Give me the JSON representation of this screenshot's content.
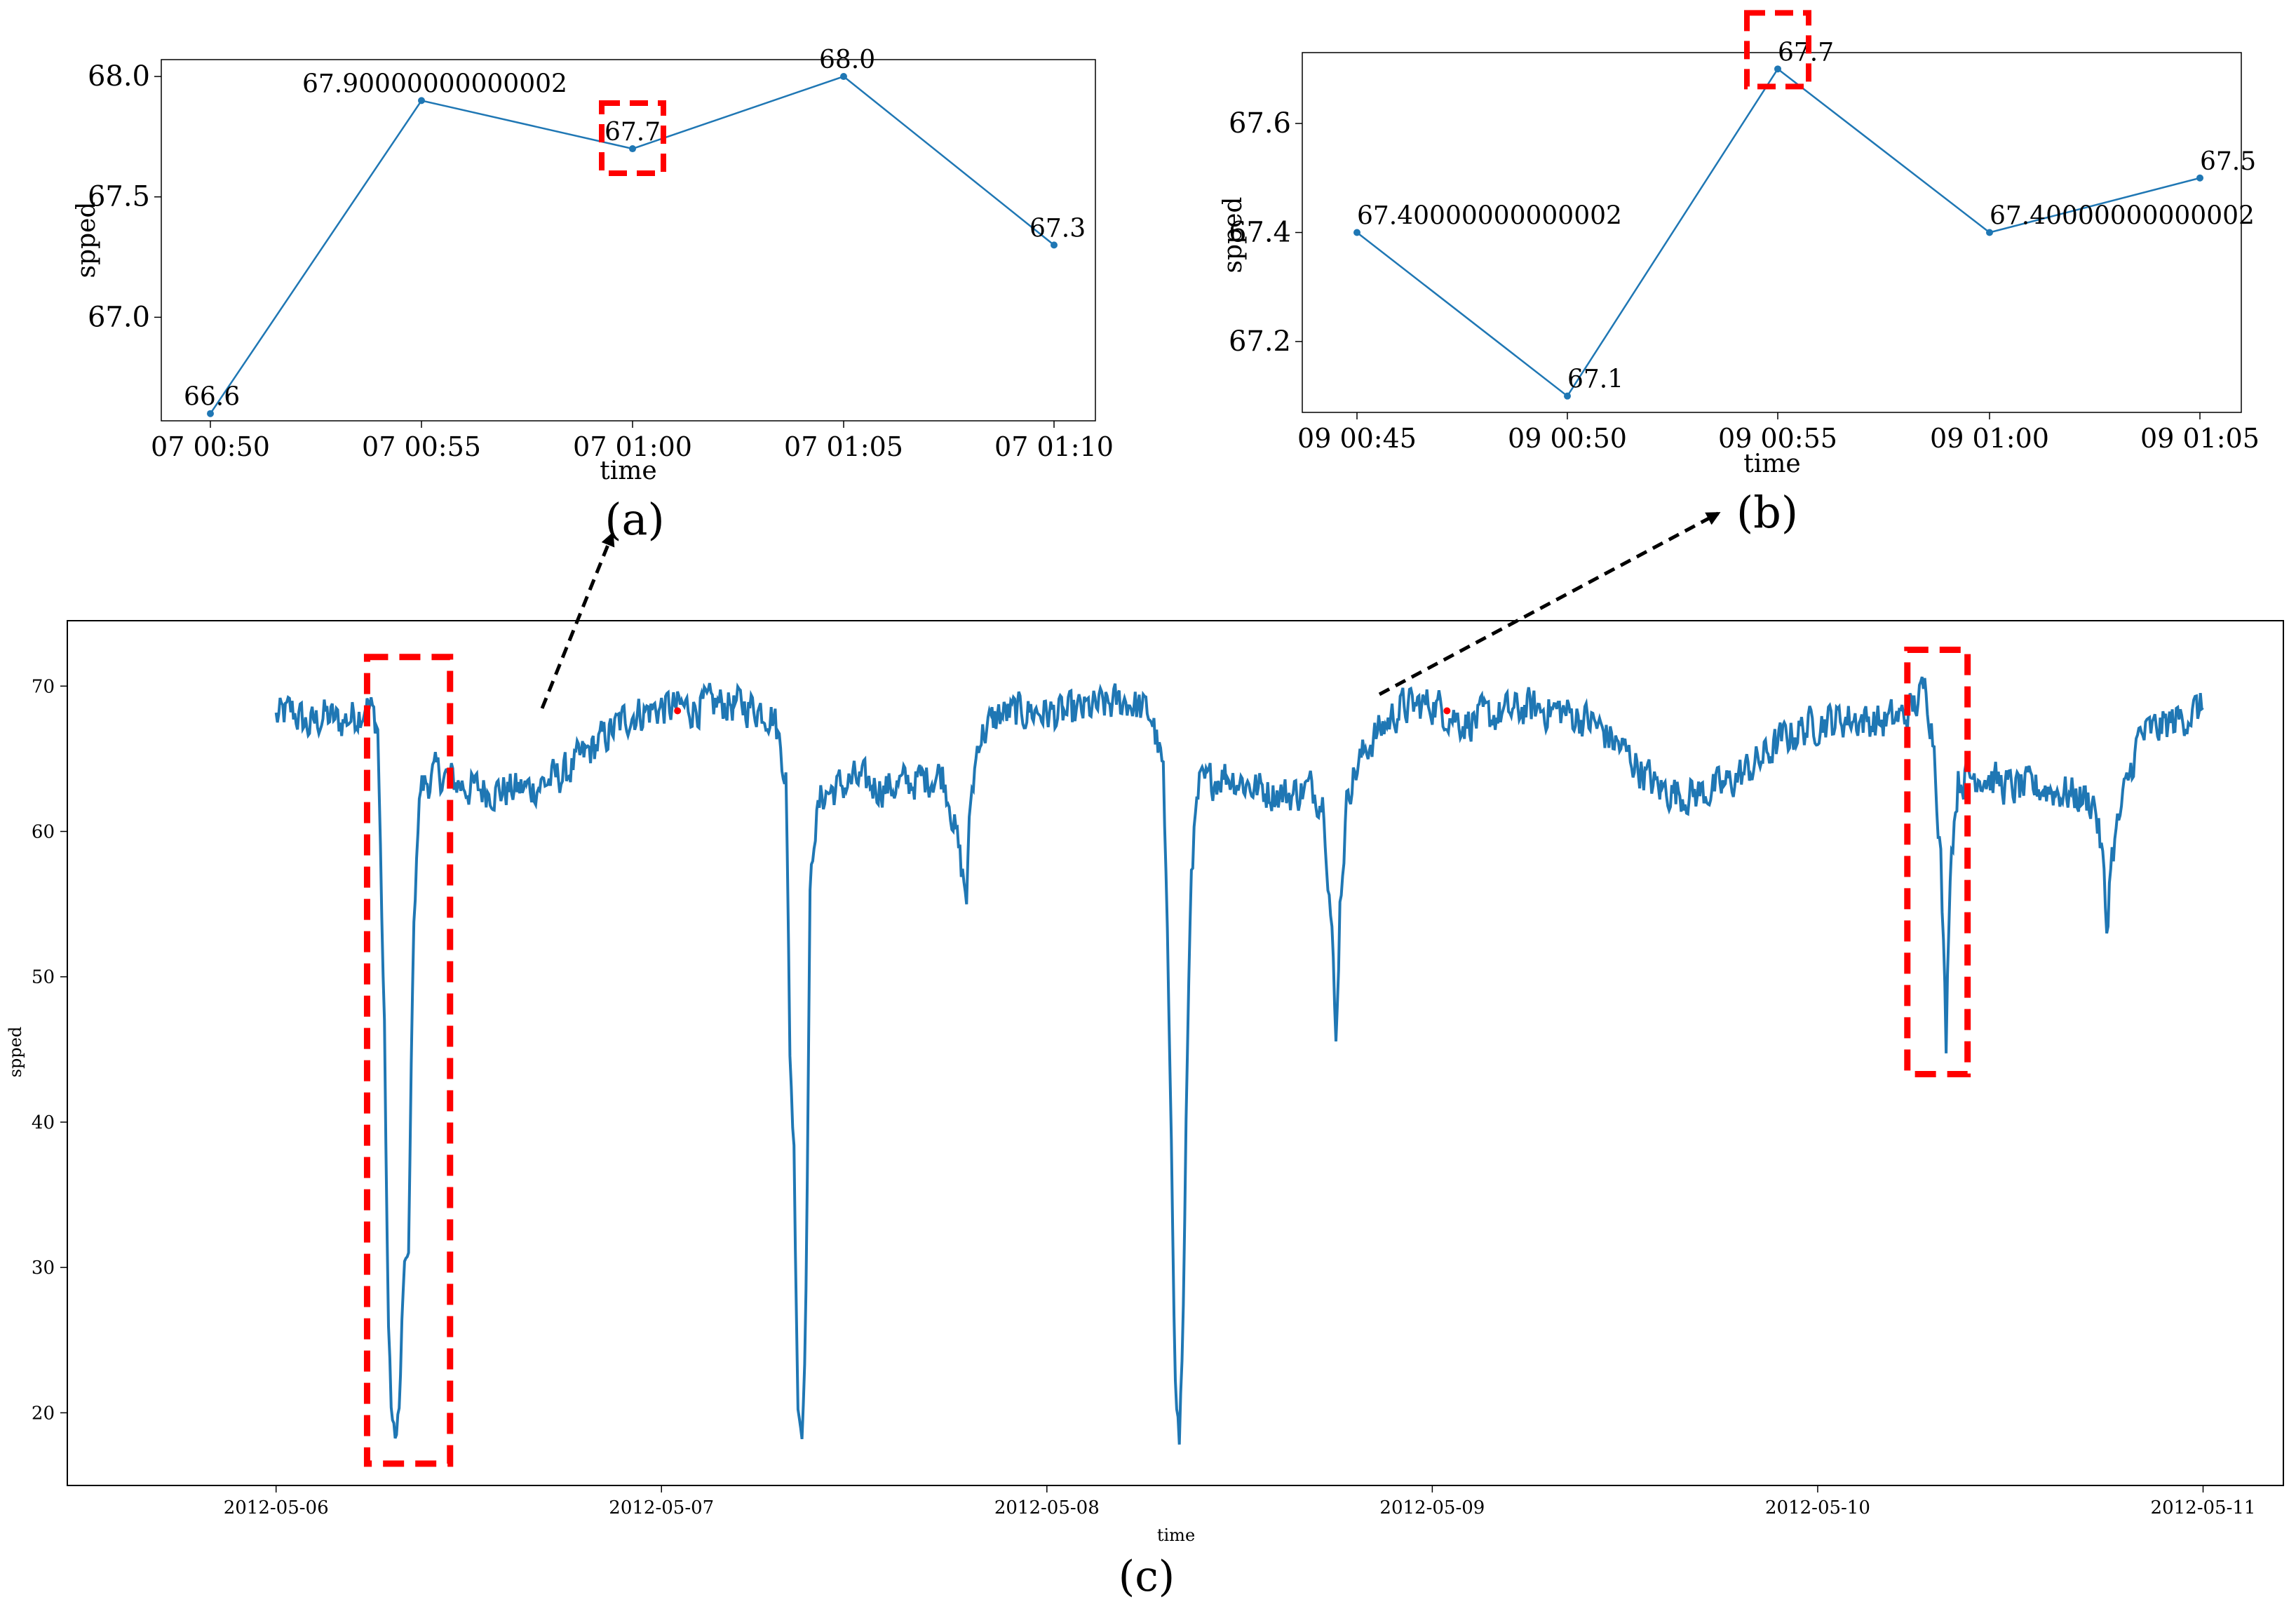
{
  "chart_data": [
    {
      "id": "a",
      "type": "line",
      "panel_label": "(a)",
      "xlabel": "time",
      "ylabel": "spped",
      "x_ticks": [
        "07 00:50",
        "07 00:55",
        "07 01:00",
        "07 01:05",
        "07 01:10"
      ],
      "x": [
        "07 00:50",
        "07 00:55",
        "07 01:00",
        "07 01:05",
        "07 01:10"
      ],
      "series": [
        {
          "values": [
            66.6,
            67.9,
            67.7,
            68.0,
            67.3
          ]
        }
      ],
      "data_labels": [
        "66.6",
        "67.90000000000002",
        "67.7",
        "68.0",
        "67.3"
      ],
      "y_ticks": [
        "67.0",
        "67.5",
        "68.0"
      ],
      "ylim": [
        66.57,
        68.07
      ],
      "highlight_index": 2
    },
    {
      "id": "b",
      "type": "line",
      "panel_label": "(b)",
      "xlabel": "time",
      "ylabel": "spped",
      "x_ticks": [
        "09 00:45",
        "09 00:50",
        "09 00:55",
        "09 01:00",
        "09 01:05"
      ],
      "x": [
        "09 00:45",
        "09 00:50",
        "09 00:55",
        "09 01:00",
        "09 01:05"
      ],
      "series": [
        {
          "values": [
            67.4,
            67.1,
            67.7,
            67.4,
            67.5
          ]
        }
      ],
      "data_labels": [
        "67.40000000000002",
        "67.1",
        "67.7",
        "67.40000000000002",
        "67.5"
      ],
      "y_ticks": [
        "67.2",
        "67.4",
        "67.6"
      ],
      "ylim": [
        67.07,
        67.73
      ],
      "highlight_index": 2
    },
    {
      "id": "c",
      "type": "line",
      "panel_label": "(c)",
      "xlabel": "time",
      "ylabel": "spped",
      "x_ticks": [
        "2012-05-06",
        "2012-05-07",
        "2012-05-08",
        "2012-05-09",
        "2012-05-10",
        "2012-05-11"
      ],
      "y_ticks": [
        "20",
        "30",
        "40",
        "50",
        "60",
        "70"
      ],
      "ylim": [
        15,
        74.5
      ],
      "xlim": [
        "2012-05-05 11:00",
        "2012-05-11 05:00"
      ],
      "series_color": "#1f77b4",
      "series": [
        {
          "anchors": [
            [
              "2012-05-06 00:00",
              67.8
            ],
            [
              "2012-05-06 01:00",
              68.3
            ],
            [
              "2012-05-06 02:00",
              67.2
            ],
            [
              "2012-05-06 03:00",
              68.0
            ],
            [
              "2012-05-06 04:00",
              67.5
            ],
            [
              "2012-05-06 05:00",
              68.1
            ],
            [
              "2012-05-06 05:45",
              68.8
            ],
            [
              "2012-05-06 06:20",
              67.2
            ],
            [
              "2012-05-06 06:45",
              46.0
            ],
            [
              "2012-05-06 07:00",
              25.0
            ],
            [
              "2012-05-06 07:15",
              19.5
            ],
            [
              "2012-05-06 07:30",
              17.8
            ],
            [
              "2012-05-06 07:45",
              22.0
            ],
            [
              "2012-05-06 08:00",
              31.0
            ],
            [
              "2012-05-06 08:15",
              30.0
            ],
            [
              "2012-05-06 08:30",
              50.0
            ],
            [
              "2012-05-06 08:45",
              59.0
            ],
            [
              "2012-05-06 09:00",
              63.0
            ],
            [
              "2012-05-06 10:00",
              64.0
            ],
            [
              "2012-05-06 12:00",
              63.0
            ],
            [
              "2012-05-06 14:00",
              62.8
            ],
            [
              "2012-05-06 16:00",
              63.0
            ],
            [
              "2012-05-06 18:00",
              64.0
            ],
            [
              "2012-05-06 20:00",
              66.0
            ],
            [
              "2012-05-06 22:00",
              68.0
            ],
            [
              "2012-05-07 00:00",
              68.5
            ],
            [
              "2012-05-07 02:00",
              68.5
            ],
            [
              "2012-05-07 04:00",
              68.8
            ],
            [
              "2012-05-07 06:00",
              68.5
            ],
            [
              "2012-05-07 07:00",
              68.0
            ],
            [
              "2012-05-07 07:45",
              64.0
            ],
            [
              "2012-05-07 08:00",
              45.0
            ],
            [
              "2012-05-07 08:15",
              38.0
            ],
            [
              "2012-05-07 08:30",
              21.0
            ],
            [
              "2012-05-07 08:45",
              18.5
            ],
            [
              "2012-05-07 09:00",
              28.0
            ],
            [
              "2012-05-07 09:15",
              55.0
            ],
            [
              "2012-05-07 09:30",
              60.0
            ],
            [
              "2012-05-07 10:00",
              62.5
            ],
            [
              "2012-05-07 12:00",
              63.5
            ],
            [
              "2012-05-07 14:00",
              63.0
            ],
            [
              "2012-05-07 16:00",
              63.5
            ],
            [
              "2012-05-07 17:30",
              64.0
            ],
            [
              "2012-05-07 18:00",
              62.0
            ],
            [
              "2012-05-07 18:45",
              57.0
            ],
            [
              "2012-05-07 19:00",
              55.5
            ],
            [
              "2012-05-07 19:15",
              62.0
            ],
            [
              "2012-05-07 19:45",
              66.5
            ],
            [
              "2012-05-07 21:00",
              68.0
            ],
            [
              "2012-05-07 23:00",
              68.3
            ],
            [
              "2012-05-08 01:00",
              68.0
            ],
            [
              "2012-05-08 03:00",
              68.5
            ],
            [
              "2012-05-08 05:00",
              69.0
            ],
            [
              "2012-05-08 06:30",
              68.0
            ],
            [
              "2012-05-08 07:15",
              64.0
            ],
            [
              "2012-05-08 07:45",
              40.0
            ],
            [
              "2012-05-08 08:00",
              22.0
            ],
            [
              "2012-05-08 08:15",
              18.0
            ],
            [
              "2012-05-08 08:30",
              27.0
            ],
            [
              "2012-05-08 08:45",
              45.0
            ],
            [
              "2012-05-08 09:00",
              58.0
            ],
            [
              "2012-05-08 09:30",
              63.0
            ],
            [
              "2012-05-08 11:00",
              64.0
            ],
            [
              "2012-05-08 13:00",
              63.0
            ],
            [
              "2012-05-08 15:00",
              62.5
            ],
            [
              "2012-05-08 16:30",
              63.0
            ],
            [
              "2012-05-08 17:15",
              62.0
            ],
            [
              "2012-05-08 17:45",
              53.0
            ],
            [
              "2012-05-08 18:00",
              45.0
            ],
            [
              "2012-05-08 18:15",
              55.0
            ],
            [
              "2012-05-08 18:45",
              63.0
            ],
            [
              "2012-05-08 20:00",
              66.0
            ],
            [
              "2012-05-08 22:00",
              68.5
            ],
            [
              "2012-05-09 00:00",
              68.8
            ],
            [
              "2012-05-09 02:00",
              67.5
            ],
            [
              "2012-05-09 04:00",
              68.0
            ],
            [
              "2012-05-09 06:00",
              68.5
            ],
            [
              "2012-05-09 08:00",
              68.3
            ],
            [
              "2012-05-09 10:00",
              67.5
            ],
            [
              "2012-05-09 12:00",
              65.5
            ],
            [
              "2012-05-09 14:00",
              63.0
            ],
            [
              "2012-05-09 16:00",
              62.5
            ],
            [
              "2012-05-09 18:00",
              63.0
            ],
            [
              "2012-05-09 20:00",
              64.5
            ],
            [
              "2012-05-09 22:00",
              66.5
            ],
            [
              "2012-05-10 00:00",
              67.5
            ],
            [
              "2012-05-10 02:00",
              67.8
            ],
            [
              "2012-05-10 04:00",
              67.5
            ],
            [
              "2012-05-10 05:30",
              68.0
            ],
            [
              "2012-05-10 06:15",
              69.0
            ],
            [
              "2012-05-10 06:45",
              70.0
            ],
            [
              "2012-05-10 07:15",
              66.0
            ],
            [
              "2012-05-10 07:40",
              58.0
            ],
            [
              "2012-05-10 08:00",
              45.5
            ],
            [
              "2012-05-10 08:15",
              58.0
            ],
            [
              "2012-05-10 08:45",
              63.5
            ],
            [
              "2012-05-10 10:00",
              64.0
            ],
            [
              "2012-05-10 12:00",
              63.0
            ],
            [
              "2012-05-10 14:00",
              63.0
            ],
            [
              "2012-05-10 16:00",
              62.5
            ],
            [
              "2012-05-10 17:15",
              62.0
            ],
            [
              "2012-05-10 17:45",
              58.0
            ],
            [
              "2012-05-10 18:00",
              53.0
            ],
            [
              "2012-05-10 18:15",
              58.0
            ],
            [
              "2012-05-10 19:00",
              62.0
            ],
            [
              "2012-05-10 20:00",
              66.5
            ],
            [
              "2012-05-10 22:00",
              67.5
            ],
            [
              "2012-05-11 00:00",
              68.5
            ]
          ]
        }
      ],
      "red_marker_times": [
        "2012-05-07 01:00",
        "2012-05-09 00:55"
      ],
      "highlight_regions": [
        {
          "from": "2012-05-06 05:40",
          "to": "2012-05-06 10:50",
          "y_from": 16.5,
          "y_to": 72.0
        },
        {
          "from": "2012-05-10 05:35",
          "to": "2012-05-10 09:20",
          "y_from": 43.3,
          "y_to": 72.5
        }
      ]
    }
  ]
}
